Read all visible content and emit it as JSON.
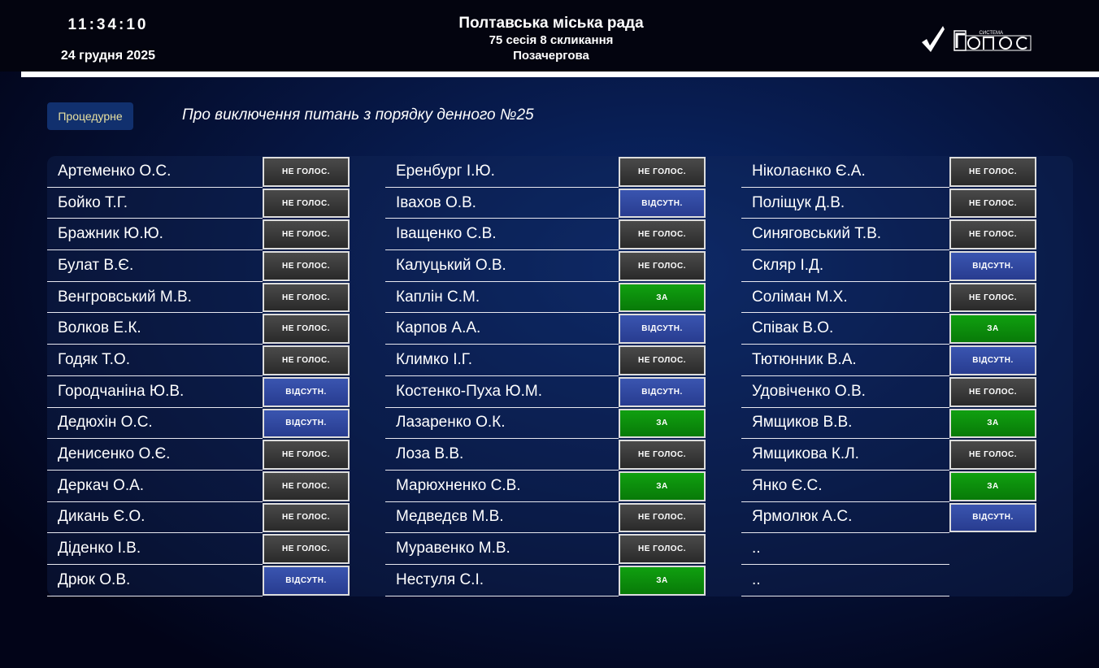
{
  "header": {
    "time": "11:34:10",
    "date": "24 грудня 2025",
    "council": "Полтавська міська рада",
    "session": "75 сесія 8 скликання",
    "session_type": "Позачергова",
    "logo_small": "СИСТЕМА",
    "logo_text": "Голос"
  },
  "vote": {
    "type_label": "Процедурне",
    "topic": "Про виключення питань з порядку денного №25"
  },
  "status_labels": {
    "n": "НЕ ГОЛОС.",
    "a": "ВІДСУТН.",
    "z": "ЗА"
  },
  "colors": {
    "not_voted": "#3a3a3a",
    "absent": "#30489f",
    "for": "#0c8c0c"
  },
  "columns": [
    [
      [
        "Артеменко О.С.",
        "n"
      ],
      [
        "Бойко Т.Г.",
        "n"
      ],
      [
        "Бражник Ю.Ю.",
        "n"
      ],
      [
        "Булат В.Є.",
        "n"
      ],
      [
        "Венгровський М.В.",
        "n"
      ],
      [
        "Волков Е.К.",
        "n"
      ],
      [
        "Годяк Т.О.",
        "n"
      ],
      [
        "Городчаніна Ю.В.",
        "a"
      ],
      [
        "Дедюхін О.С.",
        "a"
      ],
      [
        "Денисенко О.Є.",
        "n"
      ],
      [
        "Деркач О.А.",
        "n"
      ],
      [
        "Дикань Є.О.",
        "n"
      ],
      [
        "Діденко І.В.",
        "n"
      ],
      [
        "Дрюк О.В.",
        "a"
      ]
    ],
    [
      [
        "Еренбург І.Ю.",
        "n"
      ],
      [
        "Івахов О.В.",
        "a"
      ],
      [
        "Іващенко С.В.",
        "n"
      ],
      [
        "Калуцький О.В.",
        "n"
      ],
      [
        "Каплін С.М.",
        "z"
      ],
      [
        "Карпов А.А.",
        "a"
      ],
      [
        "Климко І.Г.",
        "n"
      ],
      [
        "Костенко-Пуха Ю.М.",
        "a"
      ],
      [
        "Лазаренко О.К.",
        "z"
      ],
      [
        "Лоза В.В.",
        "n"
      ],
      [
        "Марюхненко С.В.",
        "z"
      ],
      [
        "Медведєв М.В.",
        "n"
      ],
      [
        "Муравенко М.В.",
        "n"
      ],
      [
        "Нестуля С.І.",
        "z"
      ]
    ],
    [
      [
        "Ніколаєнко Є.А.",
        "n"
      ],
      [
        "Поліщук Д.В.",
        "n"
      ],
      [
        "Синяговський Т.В.",
        "n"
      ],
      [
        "Скляр І.Д.",
        "a"
      ],
      [
        "Соліман М.Х.",
        "n"
      ],
      [
        "Співак В.О.",
        "z"
      ],
      [
        "Тютюнник В.А.",
        "a"
      ],
      [
        "Удовіченко О.В.",
        "n"
      ],
      [
        "Ямщиков В.В.",
        "z"
      ],
      [
        "Ямщикова К.Л.",
        "n"
      ],
      [
        "Янко Є.С.",
        "z"
      ],
      [
        "Ярмолюк А.С.",
        "a"
      ],
      [
        "..",
        ""
      ],
      [
        "..",
        ""
      ]
    ]
  ]
}
